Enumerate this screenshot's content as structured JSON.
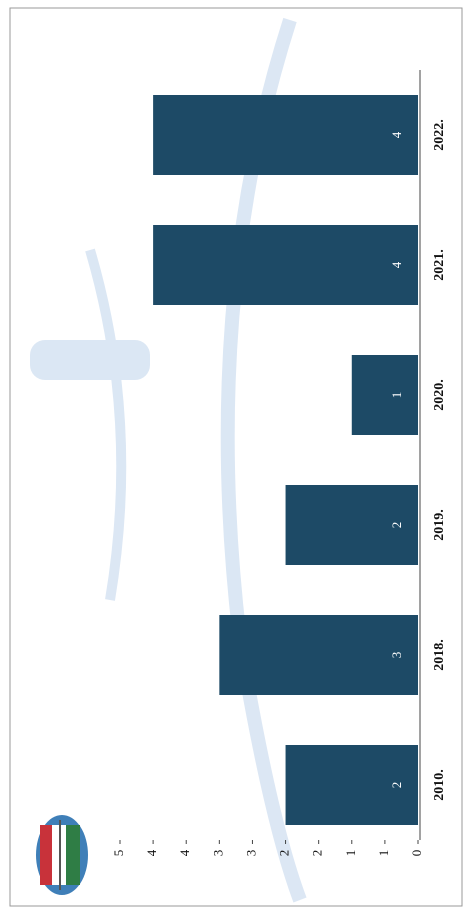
{
  "chart_data": {
    "type": "bar",
    "orientation": "rotated",
    "categories": [
      "2010.",
      "2018.",
      "2019.",
      "2020.",
      "2021.",
      "2022."
    ],
    "values": [
      2,
      3,
      2,
      1,
      4,
      4
    ],
    "color": "#1d4a66",
    "ylim": [
      0,
      4.5
    ],
    "yticks": [
      0,
      {
        "value": 0.5,
        "label": "1"
      },
      1,
      {
        "value": 1.5,
        "label": "2"
      },
      2,
      {
        "value": 2.5,
        "label": "3"
      },
      3,
      {
        "value": 3.5,
        "label": "4"
      },
      4,
      {
        "value": 4.5,
        "label": "5"
      }
    ],
    "grid": false
  }
}
